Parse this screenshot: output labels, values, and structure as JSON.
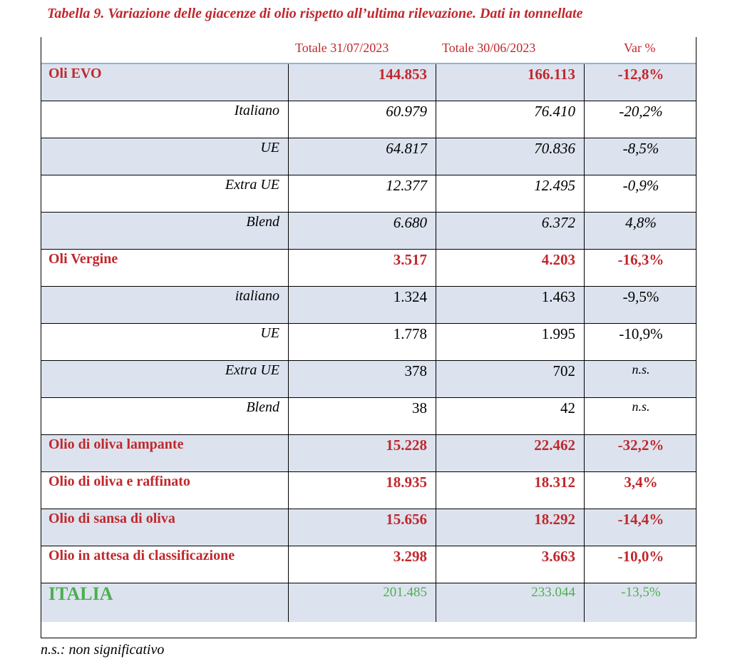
{
  "title": "Tabella 9. Variazione delle giacenze di olio rispetto all’ultima rilevazione. Dati in tonnellate",
  "headers": [
    "Totale 31/07/2023",
    "Totale 30/06/2023",
    "Var %"
  ],
  "rows": [
    {
      "label": "Oli EVO",
      "v1": "144.853",
      "v2": "166.113",
      "var": "-12,8%"
    },
    {
      "label": "Italiano",
      "v1": "60.979",
      "v2": "76.410",
      "var": "-20,2%"
    },
    {
      "label": "UE",
      "v1": "64.817",
      "v2": "70.836",
      "var": "-8,5%"
    },
    {
      "label": "Extra UE",
      "v1": "12.377",
      "v2": "12.495",
      "var": "-0,9%"
    },
    {
      "label": "Blend",
      "v1": "6.680",
      "v2": "6.372",
      "var": "4,8%"
    },
    {
      "label": "Oli Vergine",
      "v1": "3.517",
      "v2": "4.203",
      "var": "-16,3%"
    },
    {
      "label": "italiano",
      "v1": "1.324",
      "v2": "1.463",
      "var": "-9,5%"
    },
    {
      "label": "UE",
      "v1": "1.778",
      "v2": "1.995",
      "var": "-10,9%"
    },
    {
      "label": "Extra UE",
      "v1": "378",
      "v2": "702",
      "var": "n.s."
    },
    {
      "label": "Blend",
      "v1": "38",
      "v2": "42",
      "var": "n.s."
    },
    {
      "label": "Olio di oliva lampante",
      "v1": "15.228",
      "v2": "22.462",
      "var": "-32,2%"
    },
    {
      "label": "Olio di oliva e raffinato",
      "v1": "18.935",
      "v2": "18.312",
      "var": "3,4%"
    },
    {
      "label": "Olio di sansa di oliva",
      "v1": "15.656",
      "v2": "18.292",
      "var": "-14,4%"
    },
    {
      "label": "Olio in attesa di classificazione",
      "v1": "3.298",
      "v2": "3.663",
      "var": "-10,0%"
    },
    {
      "label": "ITALIA",
      "v1": "201.485",
      "v2": "233.044",
      "var": "-13,5%"
    }
  ],
  "note": "n.s.: non significativo",
  "colors": {
    "accent_red": "#c0282d",
    "total_green": "#4caf50",
    "row_shade": "#dce3ee",
    "header_rule": "#8fb3d9"
  }
}
